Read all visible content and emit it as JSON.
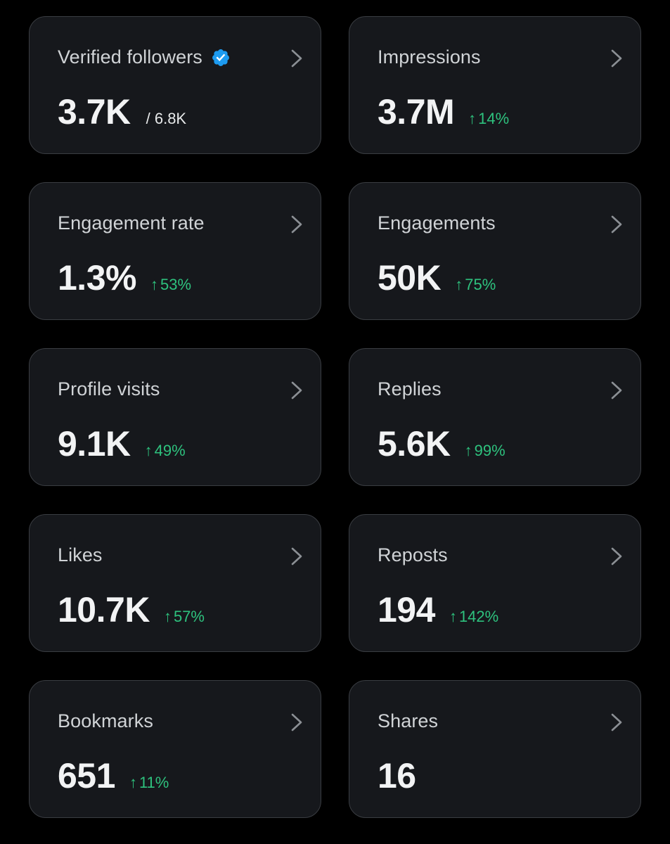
{
  "colors": {
    "background": "#000000",
    "card": "#16181c",
    "card_border": "#3a3d42",
    "delta_positive": "#2ec27e",
    "verified_badge": "#1d9bf0"
  },
  "cards": [
    {
      "title": "Verified followers",
      "value": "3.7K",
      "sub": "/ 6.8K",
      "verified_icon": "verified-badge-icon"
    },
    {
      "title": "Impressions",
      "value": "3.7M",
      "arrow": "↑",
      "delta": "14%"
    },
    {
      "title": "Engagement rate",
      "value": "1.3%",
      "arrow": "↑",
      "delta": "53%"
    },
    {
      "title": "Engagements",
      "value": "50K",
      "arrow": "↑",
      "delta": "75%"
    },
    {
      "title": "Profile visits",
      "value": "9.1K",
      "arrow": "↑",
      "delta": "49%"
    },
    {
      "title": "Replies",
      "value": "5.6K",
      "arrow": "↑",
      "delta": "99%"
    },
    {
      "title": "Likes",
      "value": "10.7K",
      "arrow": "↑",
      "delta": "57%"
    },
    {
      "title": "Reposts",
      "value": "194",
      "arrow": "↑",
      "delta": "142%"
    },
    {
      "title": "Bookmarks",
      "value": "651",
      "arrow": "↑",
      "delta": "11%"
    },
    {
      "title": "Shares",
      "value": "16"
    }
  ]
}
